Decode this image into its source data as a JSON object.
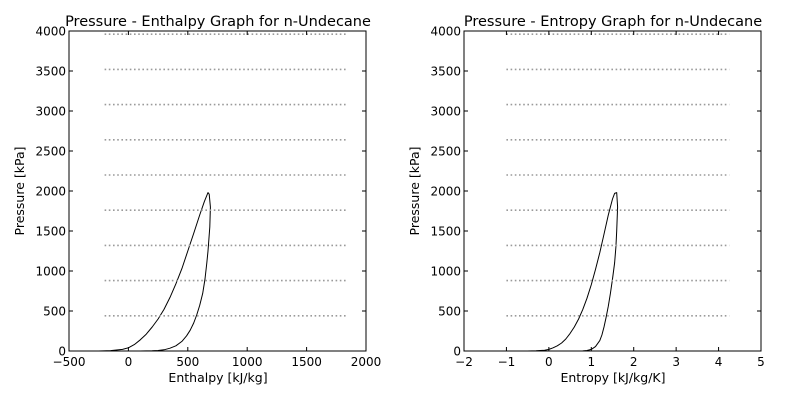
{
  "figure": {
    "background": "#ffffff",
    "line_color": "#000000",
    "isobar_color": "#9a9a9a"
  },
  "chart_data": [
    {
      "type": "line",
      "title": "Pressure - Enthalpy Graph for n-Undecane",
      "xlabel": "Enthalpy [kJ/kg]",
      "ylabel": "Pressure [kPa]",
      "xlim": [
        -500,
        2000
      ],
      "ylim": [
        0,
        4000
      ],
      "xticks": [
        -500,
        0,
        500,
        1000,
        1500,
        2000
      ],
      "xtick_labels": [
        "−500",
        "0",
        "500",
        "1000",
        "1500",
        "2000"
      ],
      "yticks": [
        0,
        500,
        1000,
        1500,
        2000,
        2500,
        3000,
        3500,
        4000
      ],
      "ytick_labels": [
        "0",
        "500",
        "1000",
        "1500",
        "2000",
        "2500",
        "3000",
        "3500",
        "4000"
      ],
      "grid": false,
      "series": [
        {
          "style": "solid",
          "x": [
            -250,
            -150,
            -50,
            0,
            50,
            100,
            150,
            200,
            250,
            300,
            350,
            400,
            450,
            500,
            550,
            600,
            640,
            670,
            680,
            690,
            685,
            678,
            670,
            660,
            645,
            625,
            600,
            575,
            550,
            520,
            490,
            450,
            400,
            350,
            300,
            250,
            200,
            150,
            100,
            50
          ],
          "y": [
            0,
            5,
            20,
            40,
            80,
            140,
            210,
            300,
            400,
            520,
            670,
            840,
            1030,
            1250,
            1470,
            1700,
            1870,
            1980,
            1960,
            1800,
            1550,
            1400,
            1250,
            1100,
            900,
            720,
            570,
            450,
            350,
            260,
            190,
            120,
            65,
            35,
            15,
            6,
            3,
            1,
            0,
            0
          ]
        },
        {
          "style": "dotted",
          "x": [
            -200,
            1850
          ],
          "y": [
            440,
            440
          ]
        },
        {
          "style": "dotted",
          "x": [
            -200,
            1850
          ],
          "y": [
            880,
            880
          ]
        },
        {
          "style": "dotted",
          "x": [
            -200,
            1850
          ],
          "y": [
            1320,
            1320
          ]
        },
        {
          "style": "dotted",
          "x": [
            -200,
            1850
          ],
          "y": [
            1760,
            1760
          ]
        },
        {
          "style": "dotted",
          "x": [
            -200,
            1850
          ],
          "y": [
            2200,
            2200
          ]
        },
        {
          "style": "dotted",
          "x": [
            -200,
            1850
          ],
          "y": [
            2640,
            2640
          ]
        },
        {
          "style": "dotted",
          "x": [
            -200,
            1850
          ],
          "y": [
            3080,
            3080
          ]
        },
        {
          "style": "dotted",
          "x": [
            -200,
            1850
          ],
          "y": [
            3520,
            3520
          ]
        },
        {
          "style": "dotted",
          "x": [
            -200,
            1850
          ],
          "y": [
            3960,
            3960
          ]
        }
      ]
    },
    {
      "type": "line",
      "title": "Pressure - Entropy Graph for n-Undecane",
      "xlabel": "Entropy [kJ/kg/K]",
      "ylabel": "Pressure [kPa]",
      "xlim": [
        -2,
        5
      ],
      "ylim": [
        0,
        4000
      ],
      "xticks": [
        -2,
        -1,
        0,
        1,
        2,
        3,
        4,
        5
      ],
      "xtick_labels": [
        "−2",
        "−1",
        "0",
        "1",
        "2",
        "3",
        "4",
        "5"
      ],
      "yticks": [
        0,
        500,
        1000,
        1500,
        2000,
        2500,
        3000,
        3500,
        4000
      ],
      "ytick_labels": [
        "0",
        "500",
        "1000",
        "1500",
        "2000",
        "2500",
        "3000",
        "3500",
        "4000"
      ],
      "grid": false,
      "series": [
        {
          "style": "solid",
          "x": [
            -0.5,
            -0.3,
            -0.1,
            0.0,
            0.1,
            0.2,
            0.3,
            0.4,
            0.5,
            0.6,
            0.7,
            0.8,
            0.9,
            1.0,
            1.1,
            1.2,
            1.3,
            1.4,
            1.5,
            1.55,
            1.6,
            1.62,
            1.6,
            1.58,
            1.55,
            1.5,
            1.45,
            1.4,
            1.35,
            1.3,
            1.25,
            1.2,
            1.1,
            1.0,
            0.9,
            0.8,
            0.7
          ],
          "y": [
            0,
            3,
            10,
            20,
            40,
            65,
            100,
            150,
            220,
            300,
            400,
            520,
            660,
            830,
            1020,
            1230,
            1460,
            1700,
            1900,
            1970,
            1980,
            1800,
            1500,
            1300,
            1100,
            900,
            720,
            560,
            420,
            300,
            200,
            130,
            55,
            20,
            6,
            1,
            0
          ]
        },
        {
          "style": "dotted",
          "x": [
            -1,
            4.25
          ],
          "y": [
            440,
            440
          ]
        },
        {
          "style": "dotted",
          "x": [
            -1,
            4.25
          ],
          "y": [
            880,
            880
          ]
        },
        {
          "style": "dotted",
          "x": [
            -1,
            4.25
          ],
          "y": [
            1320,
            1320
          ]
        },
        {
          "style": "dotted",
          "x": [
            -1,
            4.25
          ],
          "y": [
            1760,
            1760
          ]
        },
        {
          "style": "dotted",
          "x": [
            -1,
            4.25
          ],
          "y": [
            2200,
            2200
          ]
        },
        {
          "style": "dotted",
          "x": [
            -1,
            4.25
          ],
          "y": [
            2640,
            2640
          ]
        },
        {
          "style": "dotted",
          "x": [
            -1,
            4.25
          ],
          "y": [
            3080,
            3080
          ]
        },
        {
          "style": "dotted",
          "x": [
            -1,
            4.25
          ],
          "y": [
            3520,
            3520
          ]
        },
        {
          "style": "dotted",
          "x": [
            -1,
            4.25
          ],
          "y": [
            3960,
            3960
          ]
        }
      ]
    }
  ]
}
